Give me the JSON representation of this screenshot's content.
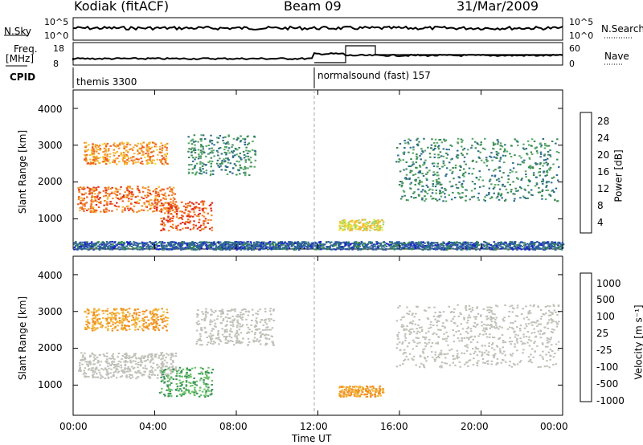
{
  "header": {
    "station": "Kodiak (fitACF)",
    "beam": "Beam 09",
    "date": "31/Mar/2009"
  },
  "summary_panels": {
    "nsky_label": "N.Sky",
    "nsky_ticks": [
      "10^5",
      "10^0"
    ],
    "nsearch_label": "N.Search",
    "nsearch_ticks": [
      "10^5",
      "10^0"
    ],
    "freq_label_line1": "Freq.",
    "freq_label_line2": "[MHz]",
    "freq_ticks": [
      "18",
      "8"
    ],
    "nave_label": "Nave",
    "nave_ticks": [
      "60",
      "0"
    ],
    "cpid_label": "CPID",
    "cpid_segments": [
      {
        "label": "themis 3300",
        "start_hour": 0
      },
      {
        "label": "normalsound (fast) 157",
        "start_hour": 12
      }
    ]
  },
  "panels": {
    "y_label": "Slant Range [km]",
    "y_ticks": [
      "1000",
      "2000",
      "3000",
      "4000"
    ],
    "x_label": "Time UT",
    "x_ticks": [
      "00:00",
      "04:00",
      "08:00",
      "12:00",
      "16:00",
      "20:00",
      "00:00"
    ]
  },
  "colors": {
    "power_scale": [
      "#1a22c8",
      "#2d55a8",
      "#2e6c8c",
      "#3a8a52",
      "#58a86a",
      "#a8d36a",
      "#f0e23a",
      "#f4b834",
      "#f08a28",
      "#ee5a1e",
      "#e22a18"
    ],
    "velocity_scale": [
      "#1e3fae",
      "#2a63a5",
      "#2e7c87",
      "#3a9457",
      "#6ec26a",
      "#c8c8c0",
      "#f3b83a",
      "#ef8e23",
      "#e8551b",
      "#dc1f17"
    ],
    "ground_scatter": "#c0c0b8"
  },
  "chart_data": [
    {
      "type": "heatmap",
      "name": "Power",
      "colorbar_label": "Power [dB]",
      "colorbar_ticks": [
        "4",
        "8",
        "12",
        "16",
        "20",
        "24",
        "28"
      ],
      "x_range_hours": [
        0,
        24
      ],
      "y_range_km": [
        180,
        4500
      ],
      "regions": [
        {
          "t0": 0.5,
          "t1": 4.6,
          "r0": 2500,
          "r1": 3100,
          "level": 0.78
        },
        {
          "t0": 0.2,
          "t1": 5.0,
          "r0": 1200,
          "r1": 1900,
          "level": 0.85
        },
        {
          "t0": 4.2,
          "t1": 6.8,
          "r0": 700,
          "r1": 1500,
          "level": 0.9
        },
        {
          "t0": 5.6,
          "t1": 8.9,
          "r0": 2200,
          "r1": 3300,
          "level": 0.3
        },
        {
          "t0": 13.0,
          "t1": 15.2,
          "r0": 700,
          "r1": 1000,
          "level": 0.6
        },
        {
          "t0": 15.8,
          "t1": 23.8,
          "r0": 1500,
          "r1": 3200,
          "level": 0.3
        },
        {
          "t0": 0.0,
          "t1": 24.0,
          "r0": 180,
          "r1": 400,
          "level": 0.15
        }
      ]
    },
    {
      "type": "heatmap",
      "name": "Velocity",
      "colorbar_label": "Velocity [m s⁻¹]",
      "colorbar_ticks": [
        "1000",
        "500",
        "100",
        "25",
        "-25",
        "-100",
        "-500",
        "-1000"
      ],
      "x_range_hours": [
        0,
        24
      ],
      "y_range_km": [
        180,
        4500
      ],
      "regions": [
        {
          "t0": 0.5,
          "t1": 4.6,
          "r0": 2500,
          "r1": 3100,
          "kind": "approach"
        },
        {
          "t0": 0.2,
          "t1": 5.0,
          "r0": 1200,
          "r1": 1900,
          "kind": "ground"
        },
        {
          "t0": 4.2,
          "t1": 6.8,
          "r0": 700,
          "r1": 1500,
          "kind": "recede"
        },
        {
          "t0": 6.0,
          "t1": 9.8,
          "r0": 2100,
          "r1": 3100,
          "kind": "ground"
        },
        {
          "t0": 13.0,
          "t1": 15.2,
          "r0": 700,
          "r1": 1000,
          "kind": "approach"
        },
        {
          "t0": 15.8,
          "t1": 23.8,
          "r0": 1500,
          "r1": 3200,
          "kind": "ground"
        }
      ]
    }
  ]
}
